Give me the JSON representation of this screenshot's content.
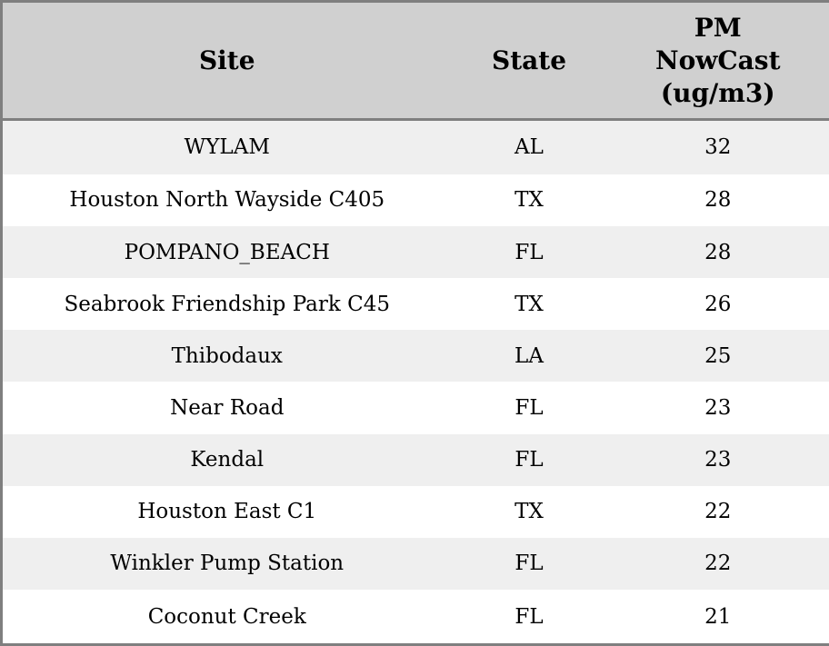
{
  "colors": {
    "header_bg": "#d0d0d0",
    "border": "#7f7f7f",
    "row_stripe": "#efefef",
    "row_plain": "#ffffff",
    "text": "#000000"
  },
  "chart_data": {
    "type": "table",
    "title": "",
    "columns": [
      "Site",
      "State",
      "PM NowCast (ug/m3)"
    ],
    "rows": [
      [
        "WYLAM",
        "AL",
        "32"
      ],
      [
        "Houston North Wayside C405",
        "TX",
        "28"
      ],
      [
        "POMPANO_BEACH",
        "FL",
        "28"
      ],
      [
        "Seabrook Friendship Park C45",
        "TX",
        "26"
      ],
      [
        "Thibodaux",
        "LA",
        "25"
      ],
      [
        "Near Road",
        "FL",
        "23"
      ],
      [
        "Kendal",
        "FL",
        "23"
      ],
      [
        "Houston East C1",
        "TX",
        "22"
      ],
      [
        "Winkler Pump Station",
        "FL",
        "22"
      ],
      [
        "Coconut Creek",
        "FL",
        "21"
      ]
    ]
  }
}
